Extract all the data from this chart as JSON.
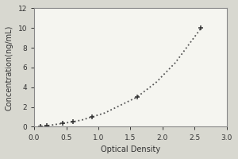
{
  "x_data": [
    0.1,
    0.2,
    0.3,
    0.45,
    0.6,
    0.75,
    0.9,
    1.1,
    1.35,
    1.6,
    1.9,
    2.2,
    2.6
  ],
  "y_data": [
    0.05,
    0.1,
    0.2,
    0.35,
    0.5,
    0.7,
    1.0,
    1.4,
    2.2,
    3.0,
    4.5,
    6.5,
    10.0
  ],
  "marker_x": [
    0.1,
    0.2,
    0.45,
    0.6,
    0.9,
    1.6,
    2.6
  ],
  "marker_y": [
    0.05,
    0.1,
    0.35,
    0.5,
    1.0,
    3.0,
    10.0
  ],
  "xlabel": "Optical Density",
  "ylabel": "Concentration(ng/mL)",
  "xlim": [
    0,
    3
  ],
  "ylim": [
    0,
    12
  ],
  "xticks": [
    0,
    0.5,
    1,
    1.5,
    2,
    2.5,
    3
  ],
  "yticks": [
    0,
    2,
    4,
    6,
    8,
    10,
    12
  ],
  "line_color": "#555555",
  "marker_color": "#333333",
  "bg_color": "#f5f5f0",
  "outer_bg": "#d8d8d0",
  "label_fontsize": 7,
  "tick_fontsize": 6.5,
  "tick_label_color": "#333333"
}
